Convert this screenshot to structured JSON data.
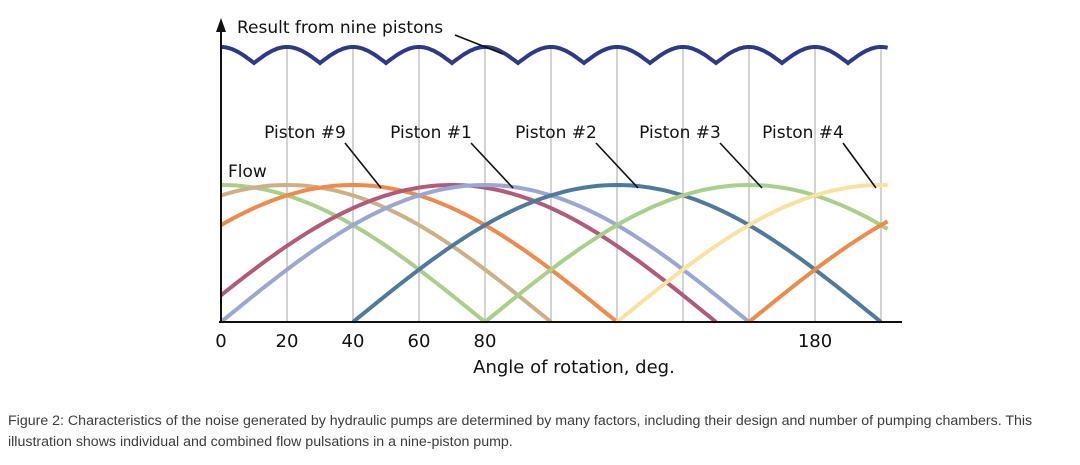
{
  "chart_data": {
    "type": "line",
    "ylabel": "Flow",
    "xlabel": "Angle of rotation, deg.",
    "x_ticks": [
      0,
      20,
      40,
      60,
      80,
      180
    ],
    "xlim": [
      0,
      204
    ],
    "grid": true,
    "result_label": "Result from nine pistons",
    "piston_labels": [
      {
        "name": "Piston #9",
        "peak_deg": 50
      },
      {
        "name": "Piston #1",
        "peak_deg": 90
      },
      {
        "name": "Piston #2",
        "peak_deg": 130
      },
      {
        "name": "Piston #3",
        "peak_deg": 170
      },
      {
        "name": "Piston #4",
        "peak_deg": 200
      }
    ],
    "series": [
      {
        "start_deg": -80,
        "color": "#a8d08a"
      },
      {
        "start_deg": -60,
        "color": "#cdb086"
      },
      {
        "start_deg": -40,
        "color": "#ee8a4a"
      },
      {
        "start_deg": -10,
        "color": "#b25a78"
      },
      {
        "start_deg": 0,
        "color": "#99a6d6"
      },
      {
        "start_deg": 40,
        "color": "#4f7aa0"
      },
      {
        "start_deg": 80,
        "color": "#a8d08a"
      },
      {
        "start_deg": 120,
        "color": "#f9e2a0"
      },
      {
        "start_deg": 160,
        "color": "#ee8a4a"
      }
    ],
    "result_color": "#2d3a8c",
    "grid_color": "#bbbbbb"
  },
  "caption": "Figure 2: Characteristics of the noise generated by hydraulic pumps are determined by many factors, including their design and number of pumping chambers. This illustration shows individual and combined flow pulsations in a nine-piston pump."
}
